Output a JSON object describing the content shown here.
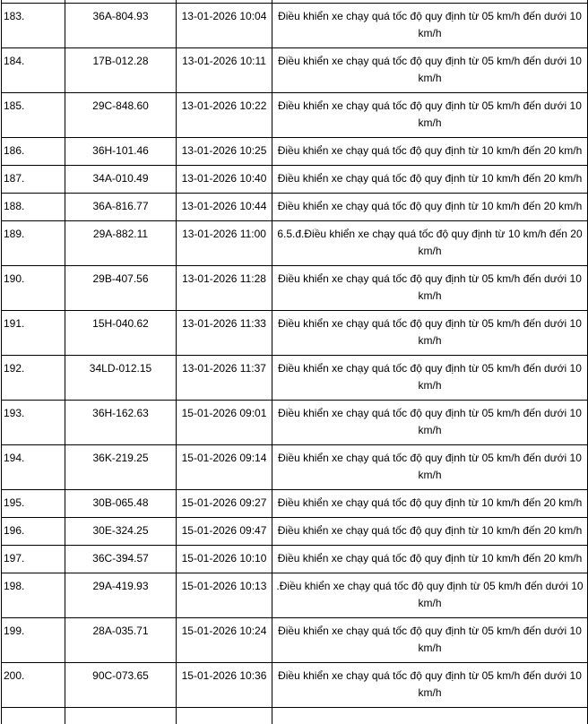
{
  "table": {
    "background": "#ffffff",
    "border_color": "#000000",
    "text_color": "#000000",
    "columns": [
      "row-number",
      "license-plate",
      "violation-datetime",
      "violation-description"
    ],
    "rows": [
      {
        "no": "183.",
        "plate": "36A-804.93",
        "datetime": "13-01-2026 10:04",
        "violation": "Điều khiển xe chạy quá tốc độ quy định từ 05 km/h đến dưới 10 km/h"
      },
      {
        "no": "184.",
        "plate": "17B-012.28",
        "datetime": "13-01-2026 10:11",
        "violation": "Điều khiển xe chạy quá tốc độ quy định từ 05 km/h đến dưới 10 km/h"
      },
      {
        "no": "185.",
        "plate": "29C-848.60",
        "datetime": "13-01-2026 10:22",
        "violation": "Điều khiển xe chạy quá tốc độ quy định từ 05 km/h đến dưới 10 km/h"
      },
      {
        "no": "186.",
        "plate": "36H-101.46",
        "datetime": "13-01-2026 10:25",
        "violation": "Điều khiển xe chạy quá tốc độ quy định từ 10 km/h đến 20 km/h"
      },
      {
        "no": "187.",
        "plate": "34A-010.49",
        "datetime": "13-01-2026 10:40",
        "violation": "Điều khiển xe chạy quá tốc độ quy định từ 10 km/h đến 20 km/h"
      },
      {
        "no": "188.",
        "plate": "36A-816.77",
        "datetime": "13-01-2026 10:44",
        "violation": "Điều khiển xe chạy quá tốc độ quy định từ 10 km/h đến 20 km/h"
      },
      {
        "no": "189.",
        "plate": "29A-882.11",
        "datetime": "13-01-2026 11:00",
        "violation": "6.5.đ.Điều khiển xe chạy quá tốc độ quy định từ 10 km/h đến 20 km/h"
      },
      {
        "no": "190.",
        "plate": "29B-407.56",
        "datetime": "13-01-2026 11:28",
        "violation": "Điều khiển xe chạy quá tốc độ quy định từ 05 km/h đến dưới 10 km/h"
      },
      {
        "no": "191.",
        "plate": "15H-040.62",
        "datetime": "13-01-2026 11:33",
        "violation": "Điều khiển xe chạy quá tốc độ quy định từ 05 km/h đến dưới 10 km/h"
      },
      {
        "no": "192.",
        "plate": "34LD-012.15",
        "datetime": "13-01-2026 11:37",
        "violation": "Điều khiển xe chạy quá tốc độ quy định từ 05 km/h đến dưới 10 km/h"
      },
      {
        "no": "193.",
        "plate": "36H-162.63",
        "datetime": "15-01-2026 09:01",
        "violation": "Điều khiển xe chạy quá tốc độ quy định từ 05 km/h đến dưới 10 km/h"
      },
      {
        "no": "194.",
        "plate": "36K-219.25",
        "datetime": "15-01-2026 09:14",
        "violation": "Điều khiển xe chạy quá tốc độ quy định từ 05 km/h đến dưới 10 km/h"
      },
      {
        "no": "195.",
        "plate": "30B-065.48",
        "datetime": "15-01-2026 09:27",
        "violation": "Điều khiển xe chạy quá tốc độ quy định từ 10 km/h đến 20 km/h"
      },
      {
        "no": "196.",
        "plate": "30E-324.25",
        "datetime": "15-01-2026 09:47",
        "violation": "Điều khiển xe chạy quá tốc độ quy định từ 10 km/h đến 20 km/h"
      },
      {
        "no": "197.",
        "plate": "36C-394.57",
        "datetime": "15-01-2026 10:10",
        "violation": "Điều khiển xe chạy quá tốc độ quy định từ 10 km/h đến 20 km/h"
      },
      {
        "no": "198.",
        "plate": "29A-419.93",
        "datetime": "15-01-2026 10:13",
        "violation": ".Điều khiển xe chạy quá tốc độ quy định từ 05 km/h đến dưới 10 km/h"
      },
      {
        "no": "199.",
        "plate": "28A-035.71",
        "datetime": "15-01-2026 10:24",
        "violation": "Điều khiển xe chạy quá tốc độ quy định từ 05 km/h đến dưới 10 km/h"
      },
      {
        "no": "200.",
        "plate": "90C-073.65",
        "datetime": "15-01-2026 10:36",
        "violation": "Điều khiển xe chạy quá tốc độ quy định từ 05 km/h đến dưới 10 km/h"
      }
    ]
  }
}
